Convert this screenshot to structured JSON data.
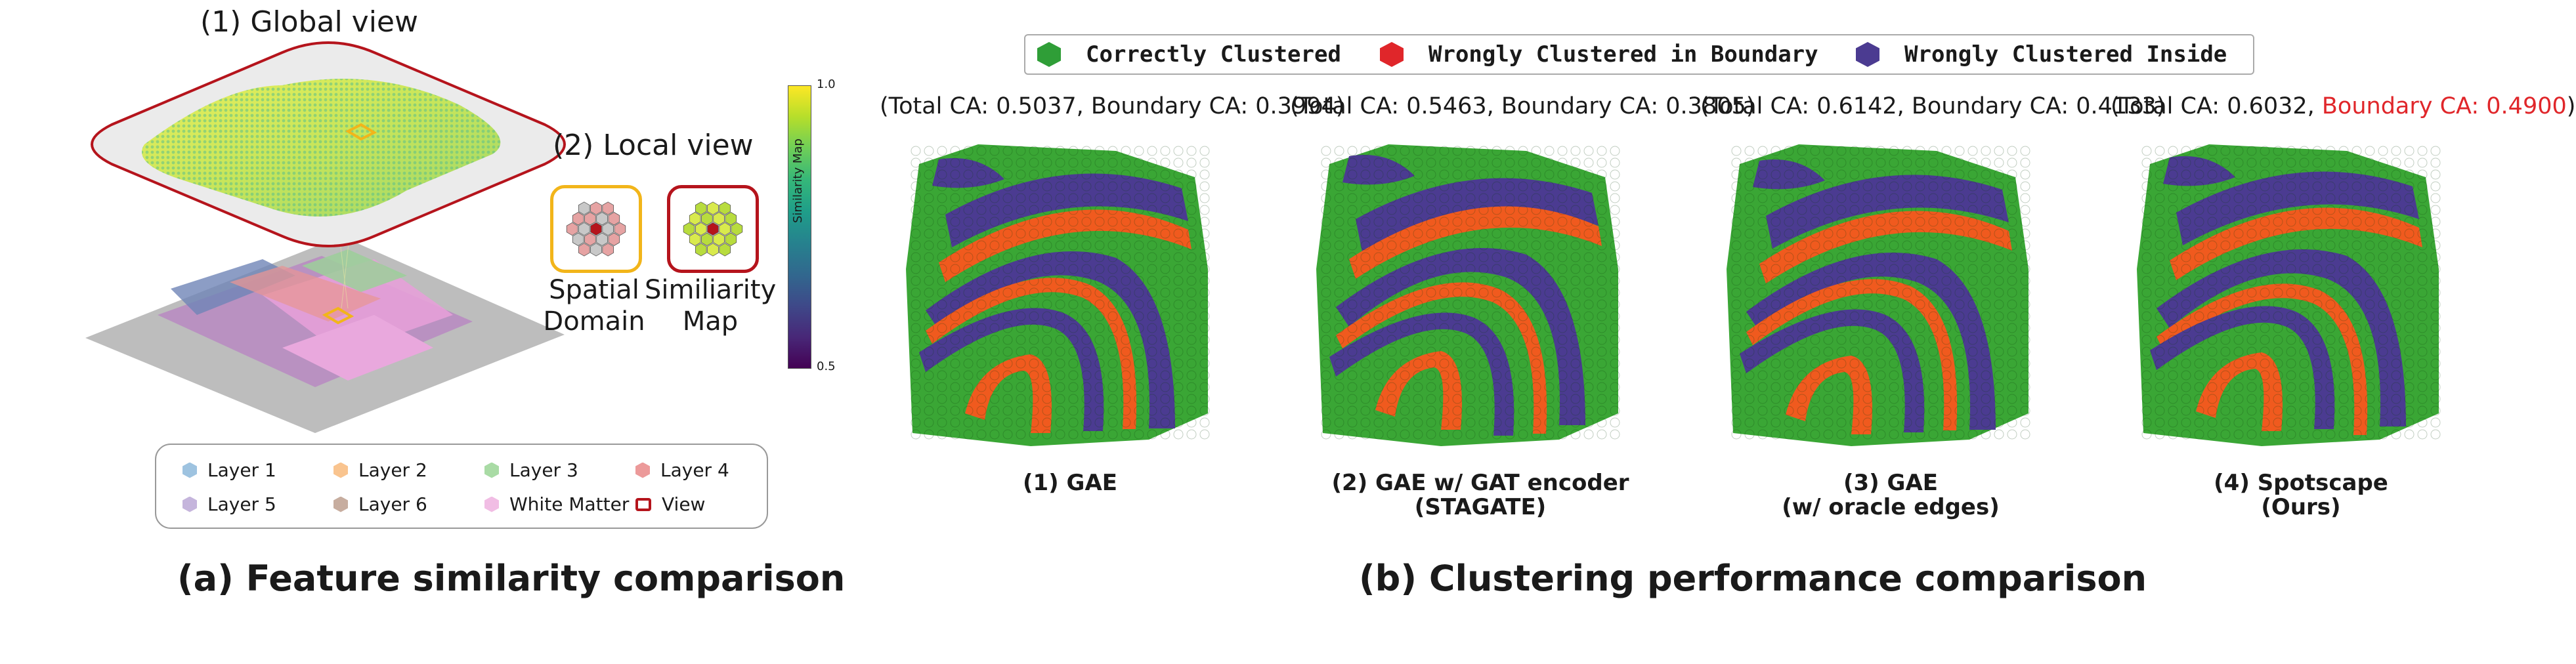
{
  "colors": {
    "correct": "#3aa635",
    "boundary": "#e02a2a",
    "inside": "#4b3b91",
    "orange": "#f05a1e",
    "frame_red": "#b5141c",
    "frame_yellow": "#f2b51a"
  },
  "panel_a": {
    "global_view_title": "(1) Global view",
    "local_view_title": "(2) Local view",
    "spatial_domain_label": "Spatial\nDomain",
    "similarity_map_label": "Similiarity\nMap",
    "colorbar": {
      "title": "Similarity Map",
      "max_label": "1.0",
      "min_label": "0.5"
    },
    "legend": [
      {
        "label": "Layer 1",
        "color": "#9ec3e0"
      },
      {
        "label": "Layer 2",
        "color": "#f9c48f"
      },
      {
        "label": "Layer 3",
        "color": "#a9dba5"
      },
      {
        "label": "Layer 4",
        "color": "#ec9a9a"
      },
      {
        "label": "Layer 5",
        "color": "#c5b5dc"
      },
      {
        "label": "Layer 6",
        "color": "#c7ad9f"
      },
      {
        "label": "White Matter",
        "color": "#f1bde4"
      },
      {
        "label": "View",
        "color": "#ffffff"
      }
    ],
    "caption": "(a) Feature similarity comparison"
  },
  "panel_b": {
    "legend": [
      {
        "label": "Correctly Clustered",
        "color": "#2f9e37"
      },
      {
        "label": "Wrongly Clustered in Boundary",
        "color": "#e0262a"
      },
      {
        "label": "Wrongly Clustered Inside",
        "color": "#4b3b91"
      }
    ],
    "panels": [
      {
        "total_ca": "(Total CA: 0.5037,",
        "boundary_ca": "Boundary CA: 0.3994)",
        "highlight": false,
        "caption": "(1) GAE"
      },
      {
        "total_ca": "(Total CA: 0.5463,",
        "boundary_ca": "Boundary CA: 0.3805)",
        "highlight": false,
        "caption": "(2) GAE w/ GAT encoder\n(STAGATE)"
      },
      {
        "total_ca": "(Total CA: 0.6142,",
        "boundary_ca": "Boundary CA: 0.4133)",
        "highlight": false,
        "caption": "(3) GAE\n(w/ oracle edges)"
      },
      {
        "total_ca": "(Total CA: 0.6032,",
        "boundary_ca": "Boundary CA: 0.4900",
        "close": ")",
        "highlight": true,
        "caption": "(4) Spotscape\n(Ours)"
      }
    ],
    "caption": "(b) Clustering performance comparison"
  }
}
